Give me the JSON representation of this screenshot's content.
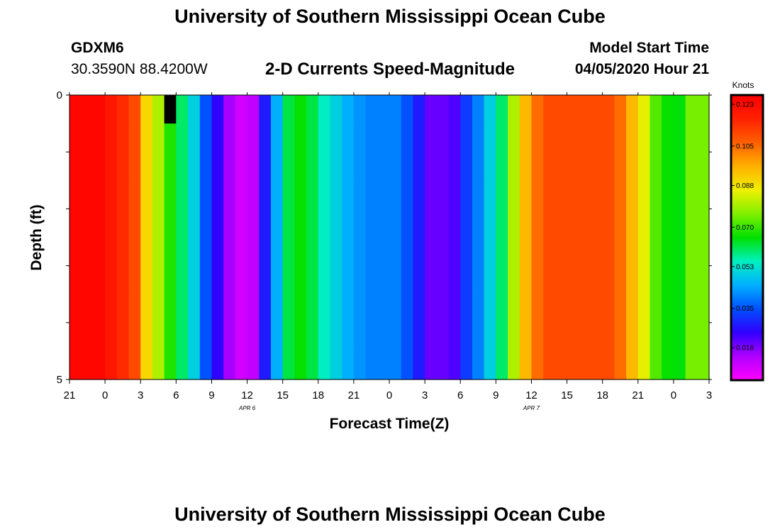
{
  "page": {
    "title": "University of Southern Mississippi Ocean Cube",
    "footer_title": "University of Southern Mississippi Ocean Cube",
    "station_id": "GDXM6",
    "station_coords": "30.3590N 88.4200W",
    "product_title": "2-D Currents Speed-Magnitude",
    "model_start_label": "Model Start Time",
    "model_start_value": "04/05/2020 Hour 21"
  },
  "colorbar": {
    "unit_label": "Knots",
    "ticks": [
      "0.123",
      "0.105",
      "0.088",
      "0.070",
      "0.053",
      "0.035",
      "0.018"
    ],
    "range": [
      0.004,
      0.127
    ],
    "colors": [
      "#ff00ff",
      "#b000ff",
      "#3000ff",
      "#0050ff",
      "#00b0ff",
      "#00f0c0",
      "#00e000",
      "#80f000",
      "#f0f000",
      "#ffb000",
      "#ff6000",
      "#ff2000",
      "#ff0000"
    ]
  },
  "chart_data": {
    "type": "heatmap",
    "title": "2-D Currents Speed-Magnitude",
    "xlabel": "Forecast Time(Z)",
    "ylabel": "Depth (ft)",
    "x_tick_labels": [
      "21",
      "0",
      "3",
      "6",
      "9",
      "12",
      "15",
      "18",
      "21",
      "0",
      "3",
      "6",
      "9",
      "12",
      "15",
      "18",
      "21",
      "0",
      "3"
    ],
    "y_tick_labels": [
      "0",
      "5"
    ],
    "date_labels": [
      {
        "text": "APR 6",
        "at_hour": 15
      },
      {
        "text": "APR 7",
        "at_hour": 39
      }
    ],
    "x_range_hours": [
      0,
      54
    ],
    "y_range_ft": [
      0,
      5
    ],
    "n_time_columns": 54,
    "depth_layers": [
      {
        "from": 0,
        "to": 0.5
      },
      {
        "from": 0.5,
        "to": 1.5
      },
      {
        "from": 1.5,
        "to": 2.5
      },
      {
        "from": 2.5,
        "to": 3.5
      },
      {
        "from": 3.5,
        "to": 4.5
      },
      {
        "from": 4.5,
        "to": 5
      }
    ],
    "masked_cell": {
      "time_hour": 8,
      "layer": 0
    },
    "speed_knots": [
      [
        0.125,
        0.125,
        0.125,
        0.12,
        0.115,
        0.11,
        0.09,
        0.08,
        0.068,
        0.06,
        0.05,
        0.035,
        0.025,
        0.015,
        0.01,
        0.012,
        0.028,
        0.045,
        0.062,
        0.066,
        0.062,
        0.055,
        0.05,
        0.045,
        0.042,
        0.04,
        0.04,
        0.04,
        0.035,
        0.028,
        0.02,
        0.02,
        0.022,
        0.032,
        0.04,
        0.05,
        0.06,
        0.08,
        0.095,
        0.105,
        0.11,
        0.11,
        0.11,
        0.11,
        0.11,
        0.11,
        0.105,
        0.095,
        0.085,
        0.072,
        0.066,
        0.065,
        0.075,
        0.075
      ],
      [
        0.125,
        0.125,
        0.125,
        0.12,
        0.115,
        0.11,
        0.09,
        0.08,
        0.068,
        0.06,
        0.05,
        0.035,
        0.025,
        0.015,
        0.01,
        0.012,
        0.028,
        0.045,
        0.062,
        0.066,
        0.062,
        0.055,
        0.05,
        0.045,
        0.042,
        0.04,
        0.04,
        0.04,
        0.035,
        0.028,
        0.02,
        0.02,
        0.022,
        0.032,
        0.04,
        0.05,
        0.06,
        0.08,
        0.095,
        0.105,
        0.11,
        0.11,
        0.11,
        0.11,
        0.11,
        0.11,
        0.105,
        0.095,
        0.085,
        0.072,
        0.066,
        0.065,
        0.075,
        0.075
      ],
      [
        0.125,
        0.125,
        0.125,
        0.12,
        0.115,
        0.11,
        0.09,
        0.08,
        0.068,
        0.06,
        0.05,
        0.035,
        0.025,
        0.015,
        0.01,
        0.012,
        0.028,
        0.045,
        0.062,
        0.066,
        0.062,
        0.055,
        0.05,
        0.045,
        0.042,
        0.04,
        0.04,
        0.04,
        0.035,
        0.028,
        0.02,
        0.02,
        0.022,
        0.032,
        0.04,
        0.05,
        0.06,
        0.08,
        0.095,
        0.105,
        0.11,
        0.11,
        0.11,
        0.11,
        0.11,
        0.11,
        0.105,
        0.095,
        0.085,
        0.072,
        0.066,
        0.065,
        0.075,
        0.075
      ],
      [
        0.125,
        0.125,
        0.125,
        0.12,
        0.115,
        0.11,
        0.09,
        0.08,
        0.068,
        0.06,
        0.05,
        0.035,
        0.025,
        0.015,
        0.01,
        0.012,
        0.028,
        0.045,
        0.062,
        0.066,
        0.062,
        0.055,
        0.05,
        0.045,
        0.042,
        0.04,
        0.04,
        0.04,
        0.035,
        0.028,
        0.02,
        0.02,
        0.022,
        0.032,
        0.04,
        0.05,
        0.06,
        0.08,
        0.095,
        0.105,
        0.11,
        0.11,
        0.11,
        0.11,
        0.11,
        0.11,
        0.105,
        0.095,
        0.085,
        0.072,
        0.066,
        0.065,
        0.075,
        0.075
      ],
      [
        0.125,
        0.125,
        0.125,
        0.12,
        0.115,
        0.11,
        0.09,
        0.08,
        0.068,
        0.06,
        0.05,
        0.035,
        0.025,
        0.015,
        0.01,
        0.012,
        0.028,
        0.045,
        0.062,
        0.066,
        0.062,
        0.055,
        0.05,
        0.045,
        0.042,
        0.04,
        0.04,
        0.04,
        0.035,
        0.028,
        0.02,
        0.02,
        0.022,
        0.032,
        0.04,
        0.05,
        0.06,
        0.08,
        0.095,
        0.105,
        0.11,
        0.11,
        0.11,
        0.11,
        0.11,
        0.11,
        0.105,
        0.095,
        0.085,
        0.072,
        0.066,
        0.065,
        0.075,
        0.075
      ],
      [
        0.125,
        0.125,
        0.125,
        0.12,
        0.115,
        0.11,
        0.09,
        0.08,
        0.068,
        0.06,
        0.05,
        0.035,
        0.025,
        0.015,
        0.01,
        0.012,
        0.028,
        0.045,
        0.062,
        0.066,
        0.062,
        0.055,
        0.05,
        0.045,
        0.042,
        0.04,
        0.04,
        0.04,
        0.035,
        0.028,
        0.02,
        0.02,
        0.022,
        0.032,
        0.04,
        0.05,
        0.06,
        0.08,
        0.095,
        0.105,
        0.11,
        0.11,
        0.11,
        0.11,
        0.11,
        0.11,
        0.105,
        0.095,
        0.085,
        0.072,
        0.066,
        0.065,
        0.075,
        0.075
      ]
    ]
  }
}
